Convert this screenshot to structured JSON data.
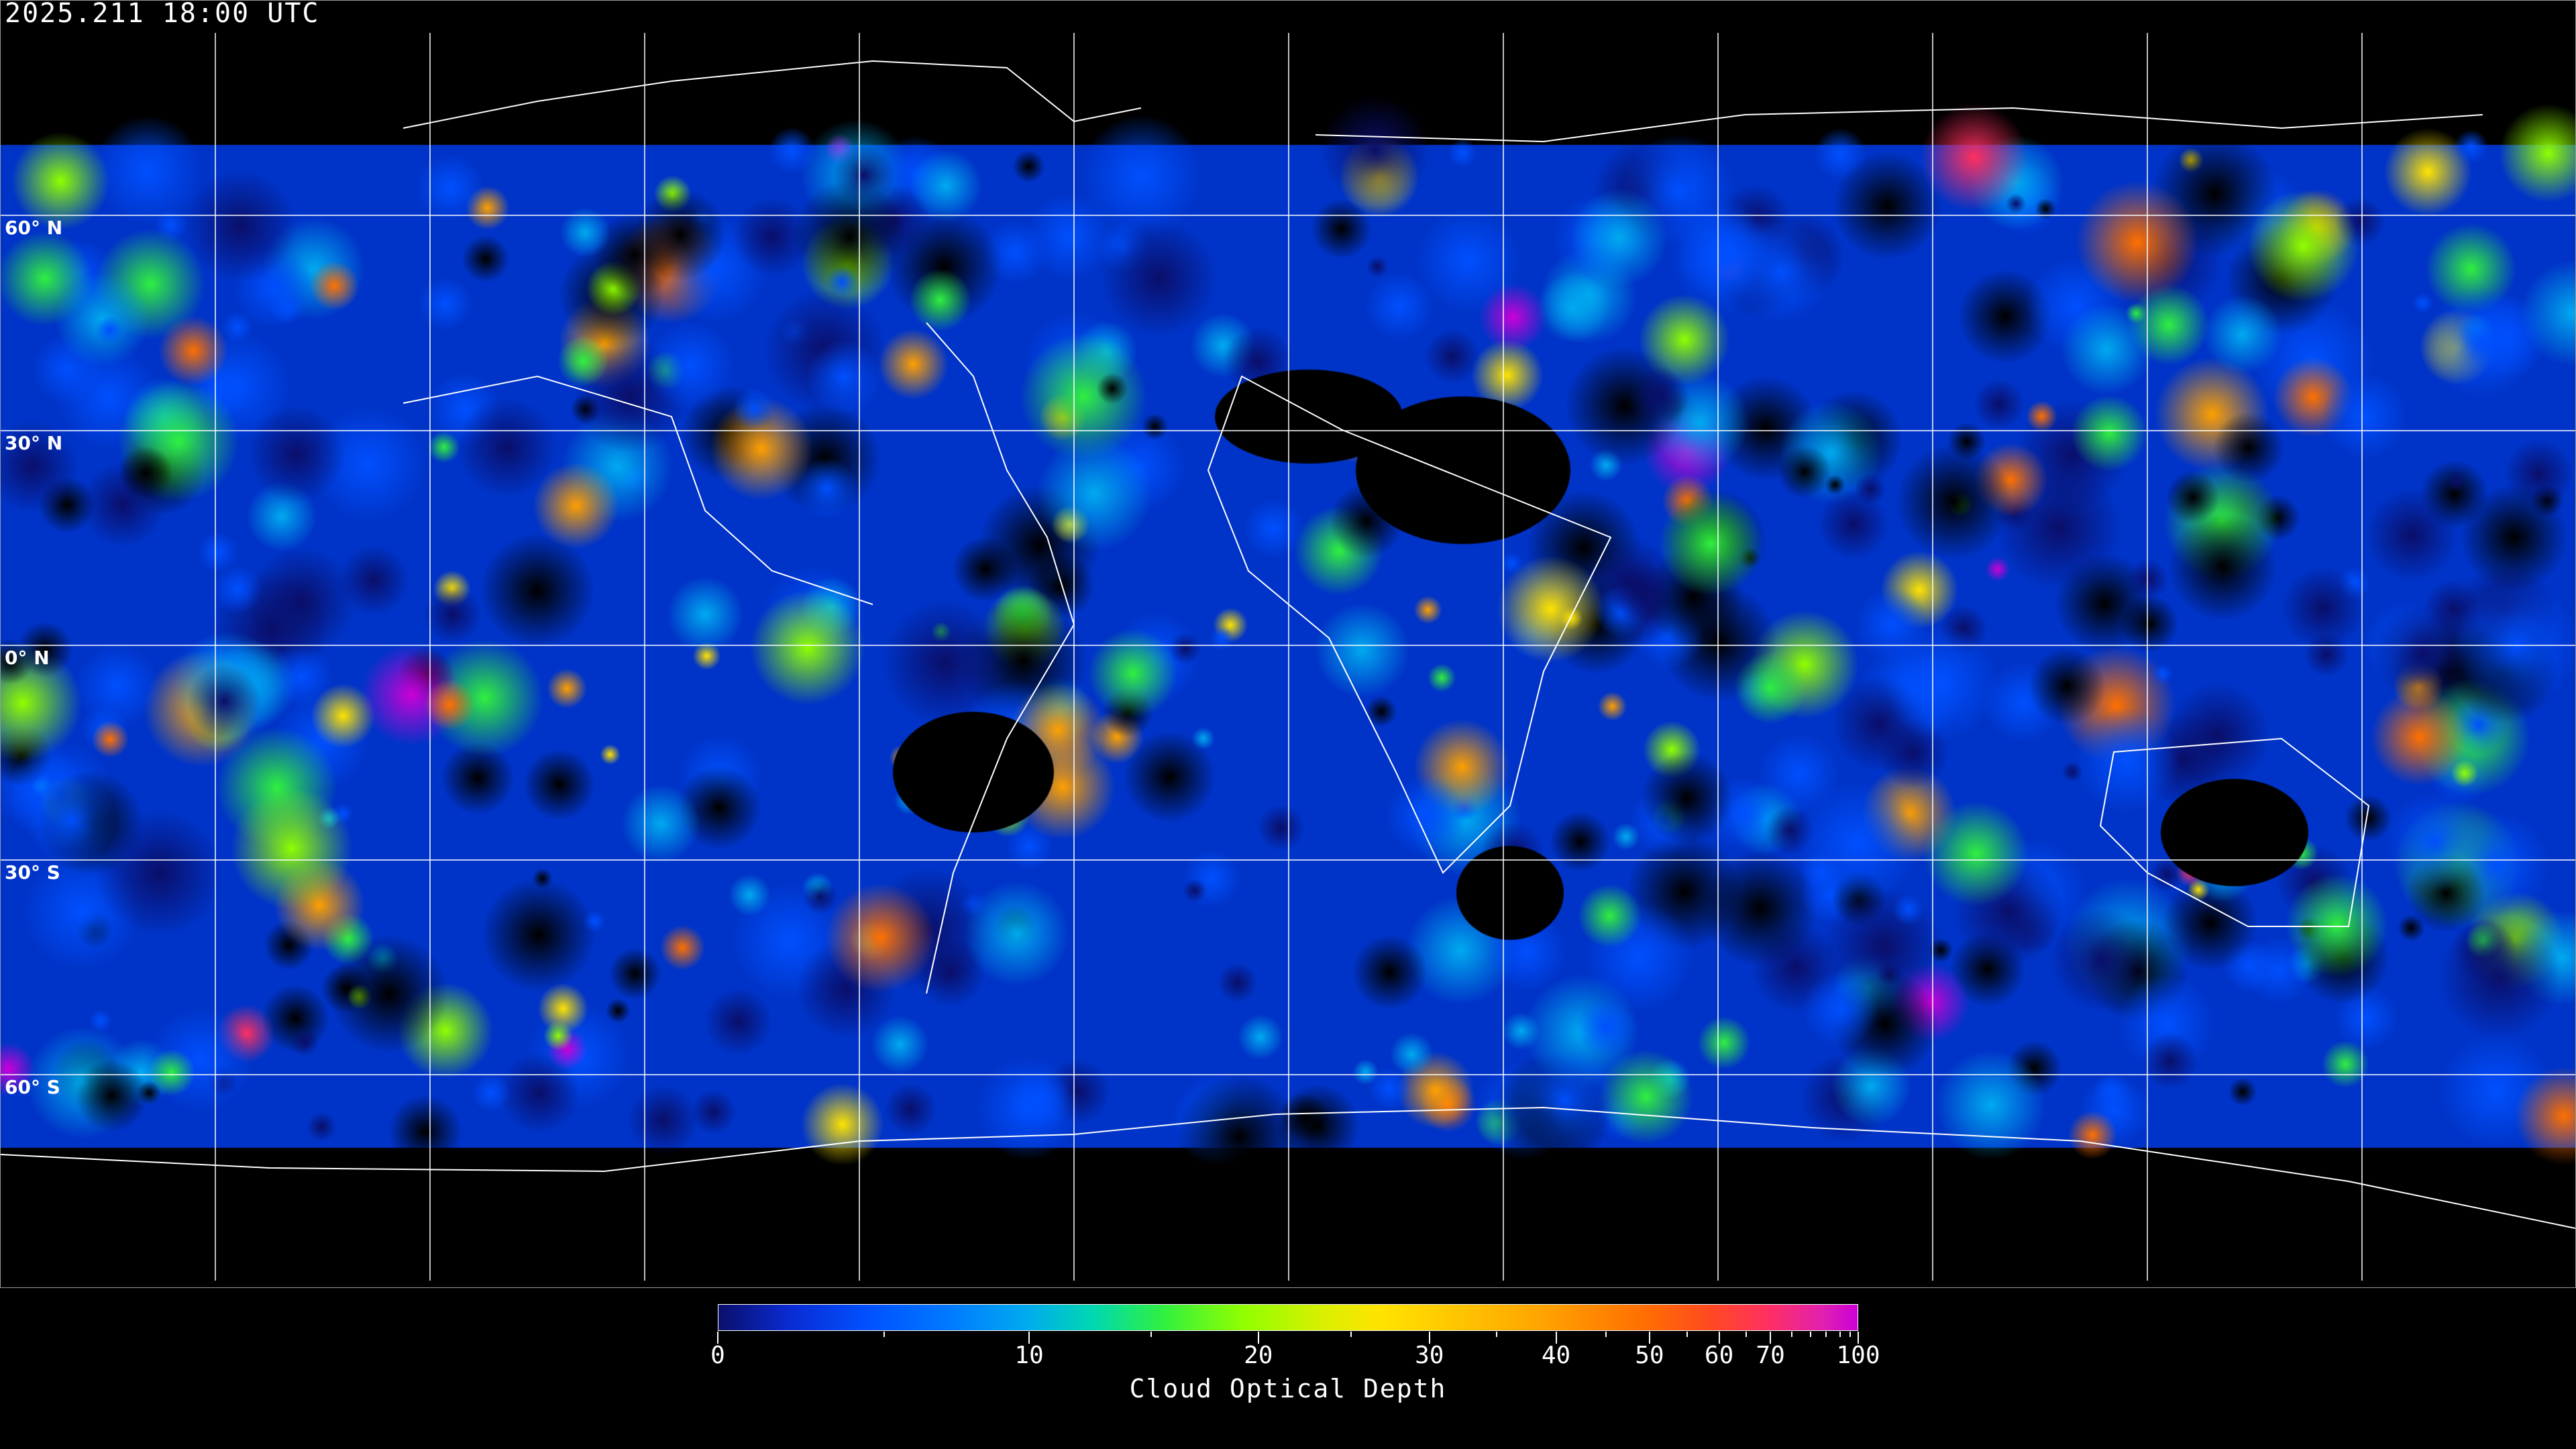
{
  "header": {
    "timestamp": "2025.211 18:00 UTC"
  },
  "map": {
    "projection": "equirectangular",
    "lat_labels": [
      "60° N",
      "30° N",
      "0° N",
      "30° S",
      "60° S"
    ],
    "gridlines": true,
    "coastlines": true
  },
  "colorbar": {
    "title": "Cloud Optical Depth",
    "range": [
      0,
      100
    ],
    "major_ticks": [
      {
        "value": 0,
        "label": "0"
      },
      {
        "value": 10,
        "label": "10"
      },
      {
        "value": 20,
        "label": "20"
      },
      {
        "value": 30,
        "label": "30"
      },
      {
        "value": 40,
        "label": "40"
      },
      {
        "value": 50,
        "label": "50"
      },
      {
        "value": 60,
        "label": "60"
      },
      {
        "value": 70,
        "label": "70"
      },
      {
        "value": 100,
        "label": "100"
      }
    ],
    "minor_ticks": [
      5,
      15,
      25,
      35,
      45,
      55,
      65,
      75,
      80,
      85,
      90,
      95
    ],
    "colors": [
      "#0a0f6a",
      "#0050ff",
      "#00aaf0",
      "#30f040",
      "#90ff00",
      "#ffe400",
      "#ffa000",
      "#ff7000",
      "#ff3060",
      "#cc00d8"
    ]
  }
}
